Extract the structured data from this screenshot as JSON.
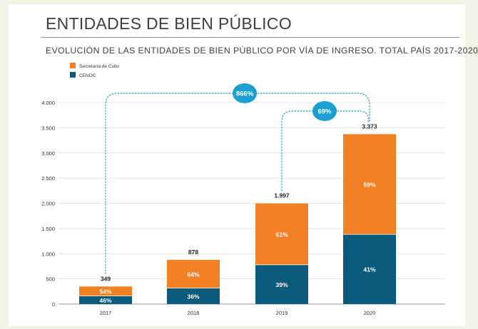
{
  "header": {
    "title": "ENTIDADES DE BIEN PÚBLICO",
    "subtitle": "EVOLUCIÓN DE LAS ENTIDADES DE BIEN PÚBLICO POR VÍA DE INGRESO. TOTAL PAÍS 2017-2020"
  },
  "colors": {
    "secretaria": "#f28025",
    "cenoc": "#0a5a7c",
    "growth_badge": "#1a9fd0",
    "dotted_line": "#1a9fd0"
  },
  "chart_data": {
    "type": "bar",
    "stacked": true,
    "title": "EVOLUCIÓN DE LAS ENTIDADES DE BIEN PÚBLICO POR VÍA DE INGRESO. TOTAL PAÍS 2017-2020",
    "categories": [
      "2017",
      "2018",
      "2019",
      "2020"
    ],
    "totals": [
      349,
      878,
      1997,
      3373
    ],
    "total_labels": [
      "349",
      "878",
      "1.997",
      "3.373"
    ],
    "series": [
      {
        "name": "CENOC",
        "color": "#0a5a7c",
        "pct": [
          46,
          36,
          39,
          41
        ],
        "pct_labels": [
          "46%",
          "36%",
          "39%",
          "41%"
        ]
      },
      {
        "name": "Secretaría de Culto",
        "color": "#f28025",
        "pct": [
          54,
          64,
          61,
          59
        ],
        "pct_labels": [
          "54%",
          "64%",
          "61%",
          "59%"
        ]
      }
    ],
    "legend": [
      "Secretaría de Culto",
      "CENOC"
    ],
    "legend_position": "top-left",
    "ylim": [
      0,
      4000
    ],
    "y_ticks": [
      0,
      500,
      1000,
      1500,
      2000,
      2500,
      3000,
      3500,
      4000
    ],
    "y_tick_labels": [
      "0",
      "500",
      "1.000",
      "1.500",
      "2.000",
      "2.500",
      "3.000",
      "3.500",
      "4.000"
    ],
    "grid": true,
    "annotations": [
      {
        "label": "866%",
        "from": "2017",
        "to": "2020"
      },
      {
        "label": "69%",
        "from": "2019",
        "to": "2020"
      }
    ]
  }
}
